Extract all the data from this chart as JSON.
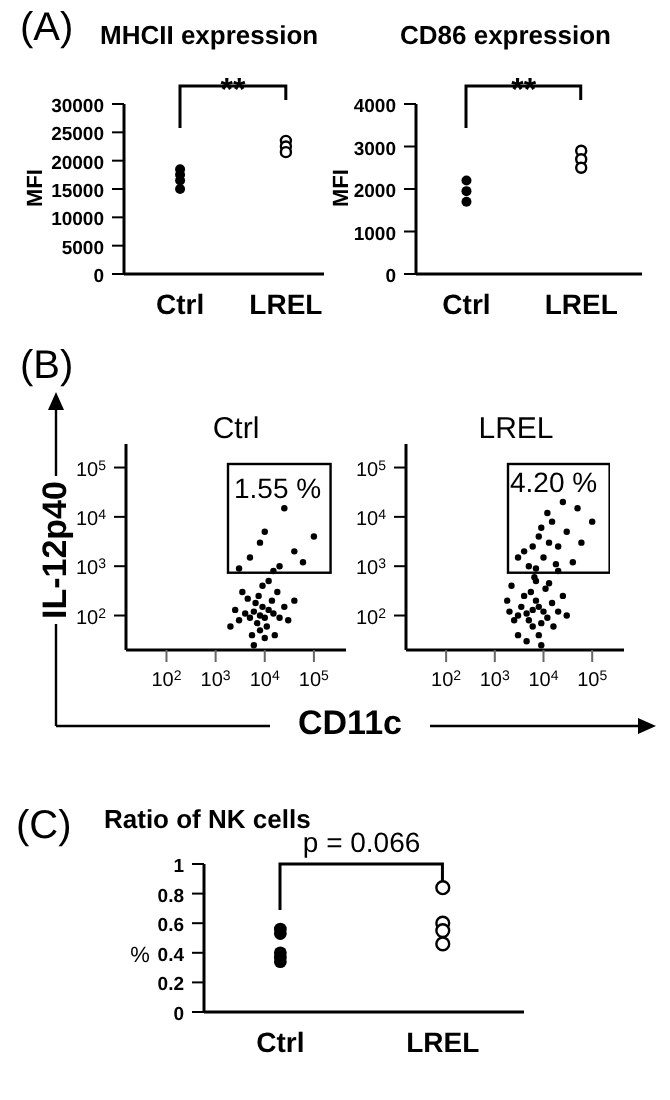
{
  "chart_data": [
    {
      "type": "scatter",
      "title": "MHCII expression",
      "ylabel": "MFI",
      "categories": [
        "Ctrl",
        "LREL"
      ],
      "ylim": [
        0,
        30000
      ],
      "yticks": [
        0,
        5000,
        10000,
        15000,
        20000,
        25000,
        30000
      ],
      "marker": "circle",
      "annotations": [
        "(A)",
        "**"
      ],
      "series": [
        {
          "color": "#000000",
          "x": [
            "Ctrl",
            "Ctrl",
            "Ctrl",
            "Ctrl"
          ],
          "values": [
            18500,
            17500,
            16500,
            15000
          ]
        },
        {
          "color": "#000000",
          "x": [
            "LREL",
            "LREL",
            "LREL"
          ],
          "values": [
            23500,
            22500,
            21500
          ]
        }
      ]
    },
    {
      "type": "scatter",
      "title": "CD86 expression",
      "ylabel": "MFI",
      "categories": [
        "Ctrl",
        "LREL"
      ],
      "ylim": [
        0,
        4000
      ],
      "yticks": [
        0,
        1000,
        2000,
        3000,
        4000
      ],
      "marker": "circle",
      "annotations": [
        "**"
      ],
      "series": [
        {
          "color": "#000000",
          "x": [
            "Ctrl",
            "Ctrl",
            "Ctrl"
          ],
          "values": [
            2200,
            1950,
            1700
          ]
        },
        {
          "color": "#000000",
          "x": [
            "LREL",
            "LREL",
            "LREL"
          ],
          "values": [
            2900,
            2700,
            2500
          ]
        }
      ]
    },
    {
      "type": "scatter",
      "title": "Ctrl",
      "ylabel": "IL-12p40",
      "log": "xy",
      "xlim": [
        15,
        450000
      ],
      "ylim": [
        20,
        300000
      ],
      "marker": "circle",
      "xticks": [
        {
          "value": 100,
          "label": "10$^{2}$"
        },
        {
          "value": 1000,
          "label": "10$^{3}$"
        },
        {
          "value": 10000,
          "label": "10$^{4}$"
        },
        {
          "value": 100000,
          "label": "10$^{5}$"
        }
      ],
      "yticks": [
        {
          "value": 100,
          "label": "10$^{2}$"
        },
        {
          "value": 1000,
          "label": "10$^{3}$"
        },
        {
          "value": 10000,
          "label": "10$^{4}$"
        },
        {
          "value": 100000,
          "label": "10$^{5}$"
        }
      ],
      "annotations": [
        "(B)",
        "1.55 %"
      ],
      "series": [
        {
          "color": "#000000",
          "x": [
            8000,
            6000,
            10000,
            7000,
            12000,
            5000,
            9000,
            15000,
            4000,
            8000,
            11000,
            6500,
            20000,
            3000,
            14000,
            7500,
            5500,
            25000,
            2500,
            10000,
            18000,
            4500,
            30000,
            2000,
            9000,
            12000,
            3500,
            40000,
            6000,
            16000,
            20000,
            5000,
            40000,
            10000,
            60000,
            3000,
            25000,
            8000,
            100000,
            15000
          ],
          "values": [
            100,
            120,
            90,
            70,
            130,
            90,
            150,
            110,
            110,
            50,
            60,
            180,
            90,
            80,
            200,
            250,
            40,
            150,
            130,
            35,
            300,
            220,
            80,
            60,
            400,
            500,
            300,
            200,
            25,
            40,
            1000,
            1500,
            2000,
            5000,
            1200,
            900,
            15000,
            3000,
            4000,
            800
          ]
        }
      ]
    },
    {
      "type": "scatter",
      "title": "LREL",
      "xlabel": "CD11c",
      "log": "xy",
      "xlim": [
        15,
        450000
      ],
      "ylim": [
        20,
        300000
      ],
      "marker": "circle",
      "xticks": [
        {
          "value": 100,
          "label": "10$^{2}$"
        },
        {
          "value": 1000,
          "label": "10$^{3}$"
        },
        {
          "value": 10000,
          "label": "10$^{4}$"
        },
        {
          "value": 100000,
          "label": "10$^{5}$"
        }
      ],
      "yticks": [
        {
          "value": 100,
          "label": "10$^{2}$"
        },
        {
          "value": 1000,
          "label": "10$^{3}$"
        },
        {
          "value": 10000,
          "label": "10$^{4}$"
        },
        {
          "value": 100000,
          "label": "10$^{5}$"
        }
      ],
      "annotations": [
        "4.20 %"
      ],
      "series": [
        {
          "color": "#000000",
          "x": [
            6000,
            4500,
            8000,
            5000,
            10000,
            3500,
            7000,
            12000,
            3000,
            6000,
            9000,
            4000,
            15000,
            2500,
            20000,
            5500,
            8000,
            2000,
            25000,
            11000,
            3000,
            7000,
            16000,
            4500,
            1800,
            30000,
            9000,
            13000,
            2200,
            6500,
            5000,
            10000,
            20000,
            8000,
            15000,
            30000,
            4000,
            60000,
            12000,
            25000,
            7000,
            40000,
            9000,
            18000,
            100000,
            3000,
            50000,
            13000,
            6000,
            20000
          ],
          "values": [
            130,
            110,
            150,
            80,
            120,
            150,
            200,
            90,
            100,
            60,
            70,
            250,
            180,
            80,
            120,
            300,
            40,
            120,
            250,
            350,
            40,
            500,
            60,
            30,
            200,
            100,
            25,
            450,
            400,
            600,
            1000,
            1500,
            2500,
            4000,
            8000,
            5000,
            2000,
            3000,
            12000,
            20000,
            900,
            1200,
            6000,
            1100,
            8000,
            1500,
            15000,
            3000,
            2500,
            800
          ]
        }
      ]
    },
    {
      "type": "scatter",
      "title": "Ratio of NK cells",
      "ylabel": "%",
      "categories": [
        "Ctrl",
        "LREL"
      ],
      "ylim": [
        0,
        1
      ],
      "yticks": [
        0,
        0.2,
        0.4,
        0.6,
        0.8,
        1
      ],
      "marker": "circle",
      "annotations": [
        "(C)",
        "p = 0.066"
      ],
      "series": [
        {
          "color": "#000000",
          "x": [
            "Ctrl",
            "Ctrl",
            "Ctrl",
            "Ctrl",
            "Ctrl"
          ],
          "values": [
            0.56,
            0.53,
            0.4,
            0.37,
            0.34
          ]
        },
        {
          "color": "#000000",
          "x": [
            "LREL",
            "LREL",
            "LREL",
            "LREL"
          ],
          "values": [
            0.84,
            0.6,
            0.55,
            0.46
          ]
        }
      ]
    }
  ]
}
